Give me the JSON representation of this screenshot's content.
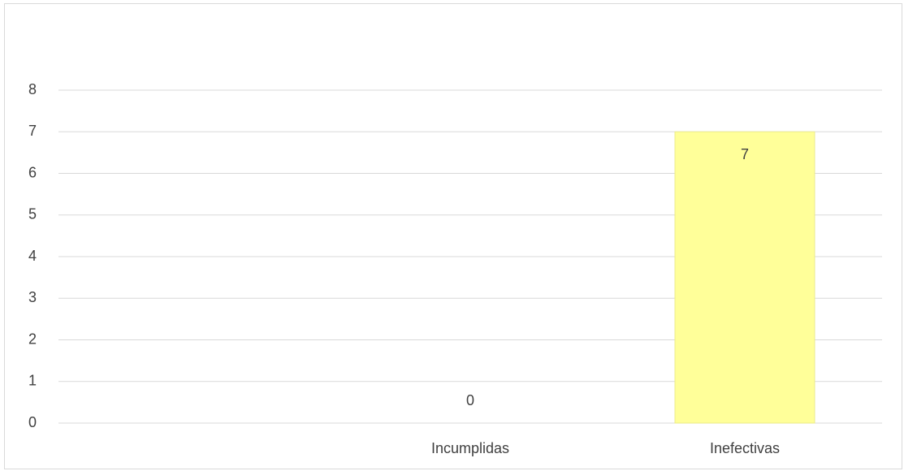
{
  "chart_data": {
    "type": "bar",
    "title": "",
    "xlabel": "",
    "ylabel": "",
    "categories": [
      "",
      "Incumplidas",
      "Inefectivas"
    ],
    "values": [
      null,
      0,
      7
    ],
    "data_labels": [
      "",
      "0",
      "7"
    ],
    "ylim": [
      0,
      8
    ],
    "yticks": [
      "0",
      "1",
      "2",
      "3",
      "4",
      "5",
      "6",
      "7",
      "8"
    ],
    "grid": true,
    "legend": "none",
    "bar_color": "#ffff99",
    "bar_edge_color": "#ebeb8c",
    "grid_color": "#d9d9d9",
    "text_color": "#404040"
  }
}
